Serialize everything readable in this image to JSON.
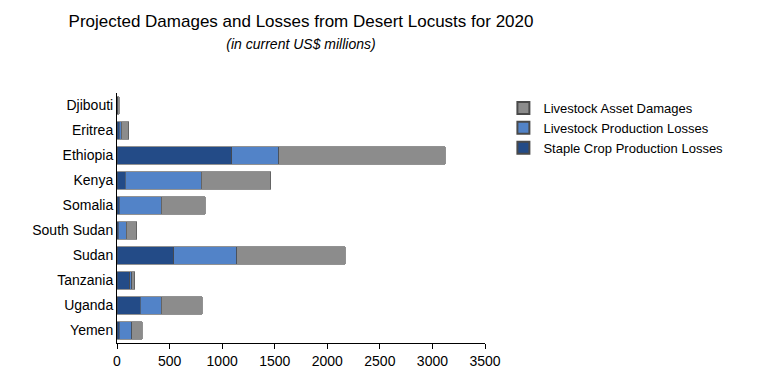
{
  "chart_data": {
    "type": "bar",
    "title": "Projected Damages and Losses from Desert Locusts for 2020",
    "subtitle": "(in current US$ millions)",
    "orientation": "horizontal",
    "stacked": true,
    "grid": false,
    "legend": "top right",
    "categories": [
      "Djibouti",
      "Eritrea",
      "Ethiopia",
      "Kenya",
      "Somalia",
      "South Sudan",
      "Sudan",
      "Tanzania",
      "Uganda",
      "Yemen"
    ],
    "series": [
      {
        "name": "Staple Crop Production Losses",
        "color": "#234b87",
        "values": [
          0,
          20,
          1090,
          80,
          20,
          10,
          540,
          120,
          220,
          20
        ]
      },
      {
        "name": "Livestock Production Losses",
        "color": "#5283c8",
        "values": [
          5,
          20,
          450,
          720,
          400,
          80,
          600,
          20,
          200,
          120
        ]
      },
      {
        "name": "Livestock Asset Damages",
        "color": "#8c8c8c",
        "values": [
          15,
          70,
          1580,
          660,
          420,
          100,
          1030,
          30,
          390,
          100
        ]
      }
    ],
    "xlim": [
      0,
      3500
    ],
    "xticks": [
      0,
      500,
      1000,
      1500,
      2000,
      2500,
      3000,
      3500
    ]
  }
}
